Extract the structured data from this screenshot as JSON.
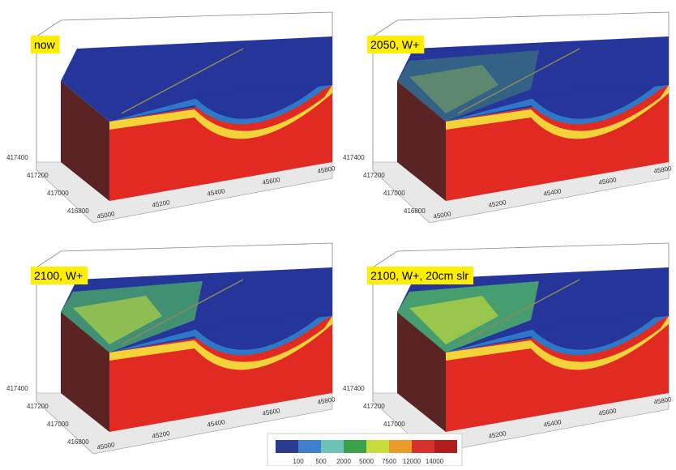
{
  "panels": [
    {
      "label": "now"
    },
    {
      "label": "2050, W+"
    },
    {
      "label": "2100, W+"
    },
    {
      "label": "2100, W+, 20cm slr"
    }
  ],
  "axis": {
    "y_ticks": [
      "417400",
      "417200",
      "417000",
      "416800"
    ],
    "x_ticks": [
      "45000",
      "45200",
      "45400",
      "45600",
      "45800"
    ]
  },
  "colorbar": {
    "labels": [
      "100",
      "500",
      "2000",
      "5000",
      "7500",
      "12000",
      "14000"
    ]
  }
}
